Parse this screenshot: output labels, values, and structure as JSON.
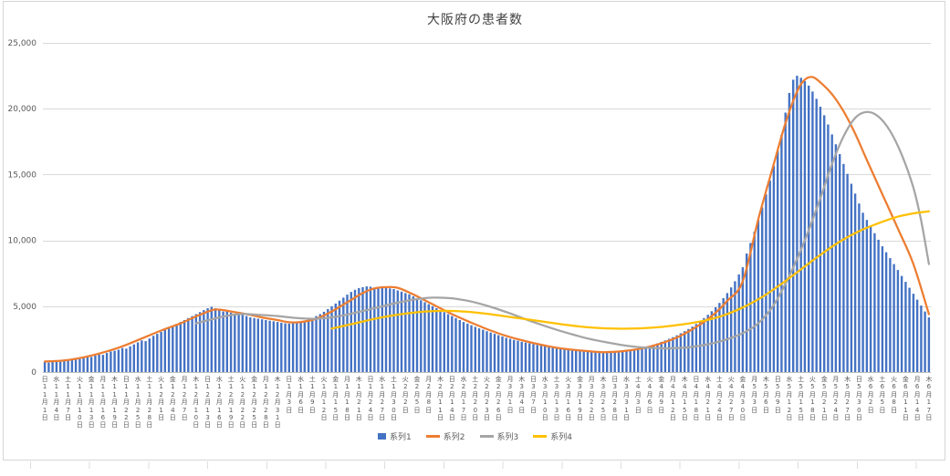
{
  "chart_data": {
    "type": "bar",
    "subtype": "combo-bar-and-lines",
    "title": "大阪府の患者数",
    "legend_position": "bottom",
    "gridlines": "horizontal",
    "y_axis": {
      "min": 0,
      "max": 25000,
      "tick_values": [
        0,
        5000,
        10000,
        15000,
        20000,
        25000
      ],
      "tick_labels": [
        "0",
        "5,000",
        "10,000",
        "15,000",
        "20,000",
        "25,000"
      ]
    },
    "x_axis": {
      "unit": "day",
      "total_days": 229,
      "tick_interval_days": 3,
      "tick_labels": [
        "日|11|1",
        "水|11|4",
        "土|11|7",
        "火|11|10",
        "金|11|13",
        "月|11|16",
        "木|11|19",
        "日|11|22",
        "水|11|25",
        "土|11|28",
        "火|12|1",
        "金|12|4",
        "月|12|7",
        "木|12|10",
        "日|12|13",
        "水|12|16",
        "土|12|19",
        "火|12|22",
        "金|12|25",
        "月|12|28",
        "木|12|31",
        "日|1|3",
        "水|1|6",
        "土|1|9",
        "火|1|12",
        "金|1|15",
        "月|1|18",
        "木|1|21",
        "日|1|24",
        "水|1|27",
        "土|1|30",
        "火|2|2",
        "金|2|5",
        "月|2|8",
        "木|2|11",
        "日|2|14",
        "水|2|17",
        "土|2|20",
        "火|2|23",
        "金|2|26",
        "月|3|1",
        "木|3|4",
        "日|3|7",
        "水|3|10",
        "土|3|13",
        "火|3|16",
        "金|3|19",
        "月|3|22",
        "木|3|25",
        "日|3|28",
        "水|3|31",
        "土|4|3",
        "火|4|6",
        "金|4|9",
        "月|4|12",
        "木|4|15",
        "日|4|18",
        "水|4|21",
        "土|4|24",
        "火|4|27",
        "金|4|30",
        "月|5|3",
        "木|5|6",
        "日|5|9",
        "水|5|12",
        "土|5|15",
        "火|5|18",
        "金|5|21",
        "月|5|24",
        "木|5|27",
        "日|5|30",
        "水|6|2",
        "土|6|5",
        "火|6|8",
        "金|6|11",
        "月|6|14",
        "木|6|17"
      ]
    },
    "series": [
      {
        "name": "系列1",
        "type": "bar",
        "color": "#4472C4",
        "values": [
          760,
          720,
          790,
          850,
          900,
          870,
          940,
          990,
          960,
          1050,
          1120,
          1180,
          1150,
          1260,
          1340,
          1310,
          1450,
          1560,
          1620,
          1700,
          1820,
          1780,
          1950,
          2100,
          2250,
          2400,
          2350,
          2550,
          2750,
          2900,
          3050,
          3200,
          3350,
          3500,
          3650,
          3800,
          3950,
          4100,
          4250,
          4400,
          4550,
          4700,
          4850,
          4950,
          4850,
          4700,
          4600,
          4650,
          4500,
          4400,
          4450,
          4350,
          4250,
          4150,
          4100,
          4050,
          4000,
          3950,
          3900,
          3850,
          3800,
          3750,
          3700,
          3680,
          3720,
          3760,
          3820,
          3900,
          4000,
          4100,
          4250,
          4400,
          4580,
          4780,
          5000,
          5200,
          5420,
          5650,
          5880,
          6080,
          6250,
          6380,
          6450,
          6500,
          6480,
          6420,
          6380,
          6450,
          6400,
          6350,
          6300,
          6200,
          6100,
          6000,
          5900,
          5750,
          5600,
          5450,
          5300,
          5150,
          5000,
          4850,
          4700,
          4550,
          4400,
          4250,
          4100,
          3950,
          3800,
          3680,
          3550,
          3430,
          3320,
          3210,
          3100,
          3000,
          2900,
          2800,
          2700,
          2600,
          2520,
          2440,
          2380,
          2300,
          2240,
          2180,
          2120,
          2060,
          2000,
          1950,
          1900,
          1860,
          1820,
          1780,
          1740,
          1700,
          1670,
          1640,
          1610,
          1580,
          1560,
          1540,
          1520,
          1500,
          1490,
          1480,
          1480,
          1490,
          1510,
          1540,
          1580,
          1630,
          1690,
          1750,
          1820,
          1900,
          1990,
          2080,
          2180,
          2290,
          2400,
          2520,
          2650,
          2790,
          2940,
          3100,
          3270,
          3450,
          3650,
          3870,
          4100,
          4350,
          4620,
          4920,
          5250,
          5610,
          6000,
          6430,
          6900,
          7410,
          7960,
          9000,
          9800,
          10650,
          11550,
          12500,
          13500,
          14550,
          15650,
          16800,
          18000,
          19700,
          21200,
          22200,
          22500,
          22350,
          22100,
          21750,
          21300,
          20750,
          20150,
          19500,
          18800,
          18050,
          17300,
          16550,
          15800,
          15050,
          14300,
          13550,
          12800,
          12100,
          11550,
          11050,
          10550,
          10050,
          9550,
          9100,
          8650,
          8200,
          7750,
          7300,
          6850,
          6400,
          5950,
          5500,
          5050,
          4600,
          4150
        ]
      },
      {
        "name": "系列2",
        "type": "line",
        "color": "#ED7D31",
        "points": [
          [
            0,
            800
          ],
          [
            5,
            880
          ],
          [
            10,
            1120
          ],
          [
            15,
            1480
          ],
          [
            20,
            1950
          ],
          [
            25,
            2550
          ],
          [
            30,
            3150
          ],
          [
            35,
            3700
          ],
          [
            40,
            4350
          ],
          [
            44,
            4750
          ],
          [
            48,
            4600
          ],
          [
            52,
            4400
          ],
          [
            56,
            4150
          ],
          [
            60,
            3950
          ],
          [
            63,
            3780
          ],
          [
            66,
            3800
          ],
          [
            70,
            4050
          ],
          [
            74,
            4600
          ],
          [
            78,
            5300
          ],
          [
            82,
            6000
          ],
          [
            85,
            6350
          ],
          [
            88,
            6450
          ],
          [
            91,
            6400
          ],
          [
            95,
            5900
          ],
          [
            100,
            5150
          ],
          [
            105,
            4400
          ],
          [
            110,
            3750
          ],
          [
            115,
            3150
          ],
          [
            120,
            2650
          ],
          [
            125,
            2280
          ],
          [
            130,
            1950
          ],
          [
            135,
            1730
          ],
          [
            140,
            1590
          ],
          [
            144,
            1510
          ],
          [
            148,
            1560
          ],
          [
            152,
            1700
          ],
          [
            156,
            1930
          ],
          [
            160,
            2280
          ],
          [
            164,
            2760
          ],
          [
            168,
            3420
          ],
          [
            172,
            4250
          ],
          [
            176,
            5400
          ],
          [
            180,
            6900
          ],
          [
            184,
            11600
          ],
          [
            188,
            15800
          ],
          [
            191,
            18900
          ],
          [
            194,
            21300
          ],
          [
            196,
            22200
          ],
          [
            198,
            22400
          ],
          [
            200,
            22000
          ],
          [
            203,
            21100
          ],
          [
            206,
            19800
          ],
          [
            209,
            18100
          ],
          [
            212,
            16100
          ],
          [
            216,
            13500
          ],
          [
            220,
            10900
          ],
          [
            224,
            8200
          ],
          [
            228,
            4400
          ]
        ]
      },
      {
        "name": "系列3",
        "type": "line",
        "color": "#A5A5A5",
        "points": [
          [
            39,
            3700
          ],
          [
            45,
            4150
          ],
          [
            50,
            4400
          ],
          [
            55,
            4350
          ],
          [
            60,
            4250
          ],
          [
            65,
            4100
          ],
          [
            70,
            4050
          ],
          [
            75,
            4200
          ],
          [
            80,
            4500
          ],
          [
            85,
            4850
          ],
          [
            90,
            5200
          ],
          [
            95,
            5500
          ],
          [
            100,
            5650
          ],
          [
            105,
            5600
          ],
          [
            110,
            5350
          ],
          [
            115,
            4950
          ],
          [
            120,
            4450
          ],
          [
            125,
            3900
          ],
          [
            130,
            3400
          ],
          [
            135,
            2950
          ],
          [
            140,
            2550
          ],
          [
            145,
            2250
          ],
          [
            150,
            2000
          ],
          [
            155,
            1850
          ],
          [
            160,
            1800
          ],
          [
            165,
            1850
          ],
          [
            170,
            2050
          ],
          [
            175,
            2400
          ],
          [
            180,
            2950
          ],
          [
            184,
            3700
          ],
          [
            188,
            5100
          ],
          [
            192,
            7300
          ],
          [
            196,
            10000
          ],
          [
            200,
            13200
          ],
          [
            203,
            15800
          ],
          [
            206,
            17900
          ],
          [
            209,
            19300
          ],
          [
            212,
            19750
          ],
          [
            215,
            19400
          ],
          [
            218,
            18300
          ],
          [
            221,
            16500
          ],
          [
            224,
            14000
          ],
          [
            226,
            11500
          ],
          [
            228,
            8200
          ]
        ]
      },
      {
        "name": "系列4",
        "type": "line",
        "color": "#FFC000",
        "points": [
          [
            74,
            3300
          ],
          [
            80,
            3700
          ],
          [
            86,
            4100
          ],
          [
            92,
            4400
          ],
          [
            98,
            4600
          ],
          [
            104,
            4650
          ],
          [
            110,
            4550
          ],
          [
            116,
            4350
          ],
          [
            122,
            4100
          ],
          [
            128,
            3850
          ],
          [
            134,
            3600
          ],
          [
            140,
            3400
          ],
          [
            146,
            3300
          ],
          [
            152,
            3300
          ],
          [
            158,
            3400
          ],
          [
            164,
            3600
          ],
          [
            170,
            3900
          ],
          [
            175,
            4300
          ],
          [
            180,
            4900
          ],
          [
            185,
            5700
          ],
          [
            190,
            6700
          ],
          [
            195,
            7800
          ],
          [
            200,
            8900
          ],
          [
            205,
            9900
          ],
          [
            210,
            10700
          ],
          [
            215,
            11300
          ],
          [
            220,
            11800
          ],
          [
            224,
            12050
          ],
          [
            228,
            12200
          ]
        ]
      }
    ]
  }
}
